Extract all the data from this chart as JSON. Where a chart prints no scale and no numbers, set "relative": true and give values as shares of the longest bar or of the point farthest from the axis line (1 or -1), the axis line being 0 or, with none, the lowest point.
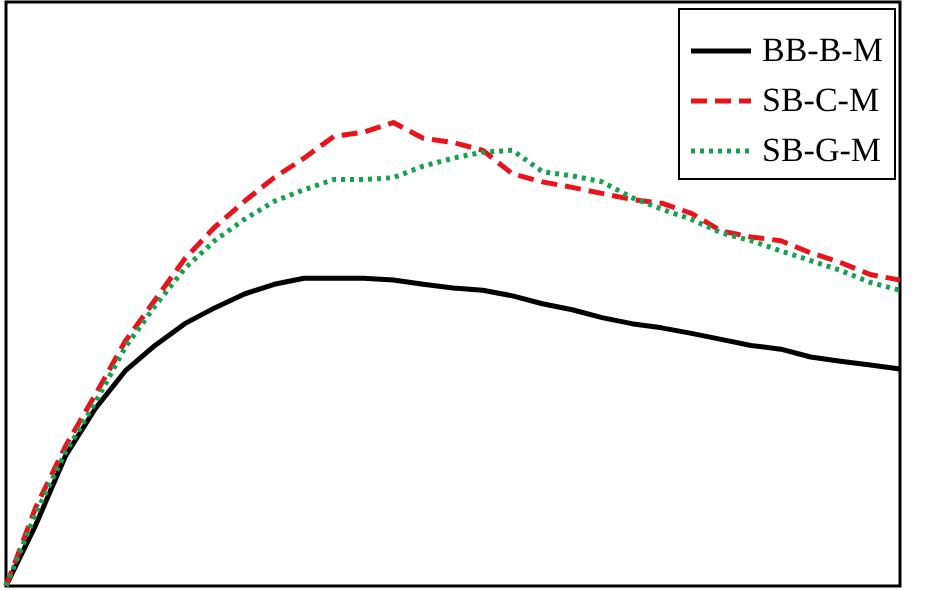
{
  "chart_data": {
    "type": "line",
    "relative": true,
    "legend": "top right",
    "marker": "none",
    "categories": [
      null,
      null,
      null,
      null,
      null,
      null,
      null,
      null,
      null,
      null,
      null,
      null,
      null,
      null,
      null,
      null,
      null,
      null,
      null,
      null,
      null,
      null,
      null,
      null,
      null,
      null,
      null,
      null,
      null,
      null,
      null
    ],
    "series": [
      {
        "name": "BB-B-M",
        "color": "#000000",
        "line_style": "solid",
        "values": [
          0,
          0.132,
          0.281,
          0.383,
          0.464,
          0.519,
          0.566,
          0.6,
          0.63,
          0.651,
          0.664,
          0.664,
          0.664,
          0.66,
          0.651,
          0.643,
          0.638,
          0.626,
          0.609,
          0.596,
          0.579,
          0.566,
          0.557,
          0.545,
          0.532,
          0.519,
          0.511,
          0.494,
          0.485,
          0.477,
          0.468
        ]
      },
      {
        "name": "SB-C-M",
        "color": "#e8141b",
        "line_style": "dashed",
        "values": [
          0,
          0.17,
          0.302,
          0.413,
          0.528,
          0.617,
          0.706,
          0.774,
          0.83,
          0.881,
          0.923,
          0.97,
          0.979,
          1,
          0.966,
          0.957,
          0.94,
          0.889,
          0.872,
          0.86,
          0.847,
          0.834,
          0.826,
          0.804,
          0.766,
          0.753,
          0.745,
          0.719,
          0.698,
          0.672,
          0.66
        ]
      },
      {
        "name": "SB-G-M",
        "color": "#16a050",
        "line_style": "dotted",
        "values": [
          0,
          0.157,
          0.289,
          0.396,
          0.515,
          0.604,
          0.685,
          0.745,
          0.791,
          0.83,
          0.855,
          0.877,
          0.877,
          0.881,
          0.906,
          0.923,
          0.936,
          0.94,
          0.894,
          0.885,
          0.872,
          0.838,
          0.813,
          0.791,
          0.762,
          0.745,
          0.723,
          0.702,
          0.681,
          0.655,
          0.638
        ]
      }
    ]
  }
}
